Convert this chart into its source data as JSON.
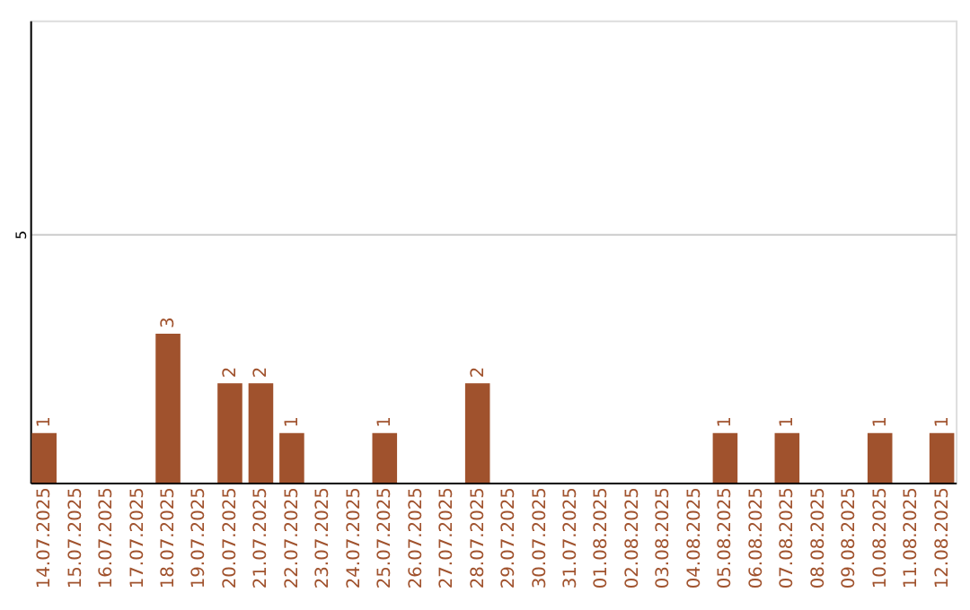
{
  "chart_data": {
    "type": "bar",
    "categories": [
      "14.07.2025",
      "15.07.2025",
      "16.07.2025",
      "17.07.2025",
      "18.07.2025",
      "19.07.2025",
      "20.07.2025",
      "21.07.2025",
      "22.07.2025",
      "23.07.2025",
      "24.07.2025",
      "25.07.2025",
      "26.07.2025",
      "27.07.2025",
      "28.07.2025",
      "29.07.2025",
      "30.07.2025",
      "31.07.2025",
      "01.08.2025",
      "02.08.2025",
      "03.08.2025",
      "04.08.2025",
      "05.08.2025",
      "06.08.2025",
      "07.08.2025",
      "08.08.2025",
      "09.08.2025",
      "10.08.2025",
      "11.08.2025",
      "12.08.2025"
    ],
    "values": [
      1,
      0,
      0,
      0,
      3,
      0,
      2,
      2,
      1,
      0,
      0,
      1,
      0,
      0,
      2,
      0,
      0,
      0,
      0,
      0,
      0,
      0,
      1,
      0,
      1,
      0,
      0,
      1,
      0,
      1
    ],
    "value_labels": [
      "1",
      null,
      null,
      null,
      "3",
      null,
      "2",
      "2",
      "1",
      null,
      null,
      "1",
      null,
      null,
      "2",
      null,
      null,
      null,
      null,
      null,
      null,
      null,
      "1",
      null,
      "1",
      null,
      null,
      "1",
      null,
      "1"
    ],
    "color": "#a0522d",
    "ylim": [
      0,
      9.3
    ],
    "yticks": [
      5
    ],
    "grid": "y"
  }
}
